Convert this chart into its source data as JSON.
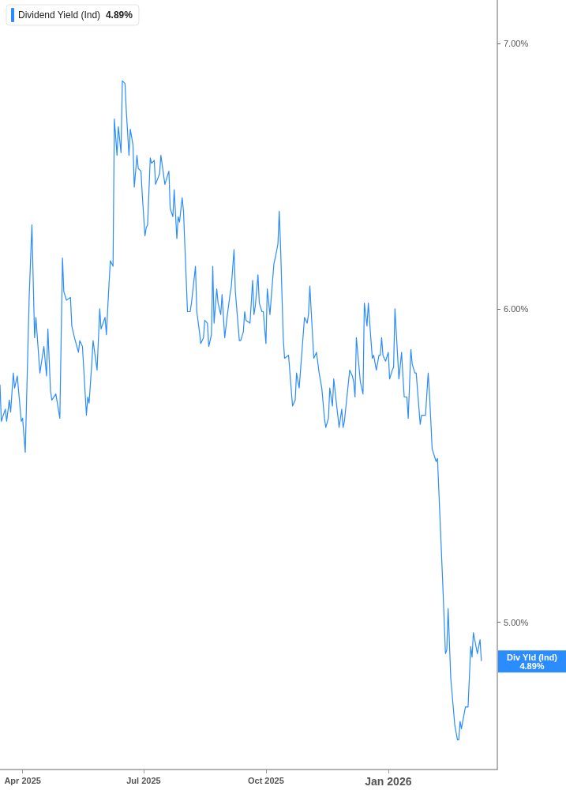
{
  "chart_data": {
    "type": "line",
    "log": "y",
    "legend": "top left",
    "marker": "none",
    "ylim": [
      4.59,
      7.18
    ],
    "yticks": [
      {
        "value": 5,
        "label": "5.00%"
      },
      {
        "value": 6,
        "label": "6.00%"
      },
      {
        "value": 7,
        "label": "7.00%"
      }
    ],
    "xlim": [
      "2025-03-15",
      "2026-03-24"
    ],
    "xticks": [
      {
        "value": "2025-04-01",
        "label": "Apr 2025"
      },
      {
        "value": "2025-07-01",
        "label": "Jul 2025"
      },
      {
        "value": "2025-10-01",
        "label": "Oct 2025"
      },
      {
        "value": "2026-01-01",
        "label": "Jan 2026"
      }
    ],
    "annotations": [
      "4.89%",
      "Div Yld (Ind)\n4.89%"
    ],
    "series": [
      {
        "name": "Dividend Yield (Ind)",
        "color": "#2a8cff",
        "x": [
          "2025-03-15",
          "2025-03-16",
          "2025-03-19",
          "2025-03-20",
          "2025-03-22",
          "2025-03-23",
          "2025-03-25",
          "2025-03-26",
          "2025-03-28",
          "2025-03-31",
          "2025-04-01",
          "2025-04-03",
          "2025-04-06",
          "2025-04-08",
          "2025-04-10",
          "2025-04-11",
          "2025-04-14",
          "2025-04-17",
          "2025-04-19",
          "2025-04-20",
          "2025-04-22",
          "2025-04-23",
          "2025-04-26",
          "2025-04-29",
          "2025-05-01",
          "2025-05-02",
          "2025-05-04",
          "2025-05-07",
          "2025-05-08",
          "2025-05-10",
          "2025-05-13",
          "2025-05-14",
          "2025-05-16",
          "2025-05-19",
          "2025-05-20",
          "2025-05-21",
          "2025-05-23",
          "2025-05-24",
          "2025-05-27",
          "2025-05-29",
          "2025-05-30",
          "2025-06-02",
          "2025-06-03",
          "2025-06-05",
          "2025-06-06",
          "2025-06-08",
          "2025-06-09",
          "2025-06-11",
          "2025-06-12",
          "2025-06-14",
          "2025-06-15",
          "2025-06-17",
          "2025-06-18",
          "2025-06-20",
          "2025-06-21",
          "2025-06-23",
          "2025-06-24",
          "2025-06-26",
          "2025-06-27",
          "2025-06-29",
          "2025-06-30",
          "2025-07-02",
          "2025-07-03",
          "2025-07-04",
          "2025-07-06",
          "2025-07-07",
          "2025-07-09",
          "2025-07-10",
          "2025-07-13",
          "2025-07-14",
          "2025-07-17",
          "2025-07-20",
          "2025-07-21",
          "2025-07-23",
          "2025-07-24",
          "2025-07-26",
          "2025-07-27",
          "2025-07-28",
          "2025-07-30",
          "2025-07-31",
          "2025-08-03",
          "2025-08-05",
          "2025-08-06",
          "2025-08-09",
          "2025-08-10",
          "2025-08-12",
          "2025-08-13",
          "2025-08-15",
          "2025-08-16",
          "2025-08-18",
          "2025-08-19",
          "2025-08-21",
          "2025-08-22",
          "2025-08-23",
          "2025-08-25",
          "2025-08-26",
          "2025-08-28",
          "2025-08-29",
          "2025-08-31",
          "2025-09-02",
          "2025-09-04",
          "2025-09-05",
          "2025-09-07",
          "2025-09-08",
          "2025-09-11",
          "2025-09-12",
          "2025-09-14",
          "2025-09-15",
          "2025-09-16",
          "2025-09-19",
          "2025-09-21",
          "2025-09-22",
          "2025-09-23",
          "2025-09-25",
          "2025-09-26",
          "2025-09-28",
          "2025-09-29",
          "2025-10-01",
          "2025-10-02",
          "2025-10-04",
          "2025-10-05",
          "2025-10-07",
          "2025-10-08",
          "2025-10-10",
          "2025-10-11",
          "2025-10-12",
          "2025-10-14",
          "2025-10-15",
          "2025-10-18",
          "2025-10-21",
          "2025-10-23",
          "2025-10-24",
          "2025-10-26",
          "2025-10-30",
          "2025-11-01",
          "2025-11-02",
          "2025-11-03",
          "2025-11-06",
          "2025-11-08",
          "2025-11-10",
          "2025-11-12",
          "2025-11-14",
          "2025-11-15",
          "2025-11-17",
          "2025-11-18",
          "2025-11-20",
          "2025-11-21",
          "2025-11-25",
          "2025-11-27",
          "2025-11-28",
          "2025-11-29",
          "2025-12-03",
          "2025-12-05",
          "2025-12-06",
          "2025-12-07",
          "2025-12-08",
          "2025-12-11",
          "2025-12-13",
          "2025-12-14",
          "2025-12-16",
          "2025-12-17",
          "2025-12-19",
          "2025-12-20",
          "2025-12-21",
          "2025-12-23",
          "2025-12-25",
          "2025-12-26",
          "2025-12-27",
          "2025-12-28",
          "2025-12-30",
          "2026-01-01",
          "2026-01-02",
          "2026-01-04",
          "2026-01-05",
          "2026-01-06",
          "2026-01-09",
          "2026-01-11",
          "2026-01-12",
          "2026-01-13",
          "2026-01-15",
          "2026-01-16",
          "2026-01-18",
          "2026-01-19",
          "2026-01-21",
          "2026-01-22",
          "2026-01-25",
          "2026-01-26",
          "2026-01-28",
          "2026-01-29",
          "2026-01-31",
          "2026-02-01",
          "2026-02-03",
          "2026-02-06",
          "2026-02-07",
          "2026-02-11",
          "2026-02-13",
          "2026-02-14",
          "2026-02-15",
          "2026-02-17",
          "2026-02-20",
          "2026-02-22",
          "2026-02-23",
          "2026-02-24",
          "2026-02-25",
          "2026-02-28",
          "2026-03-02",
          "2026-03-04",
          "2026-03-05",
          "2026-03-06",
          "2026-03-09",
          "2026-03-11",
          "2026-03-12"
        ],
        "values": [
          5.74,
          5.62,
          5.66,
          5.62,
          5.69,
          5.65,
          5.78,
          5.73,
          5.77,
          5.62,
          5.63,
          5.52,
          6.05,
          6.3,
          5.9,
          5.97,
          5.78,
          5.87,
          5.77,
          5.93,
          5.72,
          5.69,
          5.71,
          5.63,
          6.18,
          6.06,
          6.03,
          6.04,
          5.94,
          5.9,
          5.85,
          5.89,
          5.87,
          5.64,
          5.7,
          5.68,
          5.81,
          5.89,
          5.79,
          6.0,
          5.93,
          5.97,
          5.91,
          6.09,
          6.17,
          6.15,
          6.7,
          6.56,
          6.67,
          6.57,
          6.85,
          6.84,
          6.73,
          6.56,
          6.66,
          6.6,
          6.44,
          6.56,
          6.51,
          6.5,
          6.41,
          6.26,
          6.29,
          6.3,
          6.55,
          6.53,
          6.54,
          6.45,
          6.49,
          6.56,
          6.45,
          6.5,
          6.36,
          6.33,
          6.43,
          6.25,
          6.33,
          6.31,
          6.4,
          6.35,
          5.99,
          5.99,
          6.02,
          6.15,
          5.99,
          5.92,
          5.88,
          5.9,
          5.96,
          5.95,
          5.87,
          5.91,
          6.15,
          5.95,
          6.07,
          6.02,
          5.98,
          6.05,
          5.9,
          5.98,
          6.05,
          6.08,
          6.21,
          6.06,
          5.89,
          5.89,
          5.92,
          5.99,
          5.96,
          5.95,
          6.1,
          5.98,
          6.01,
          6.12,
          6.02,
          5.99,
          5.99,
          5.88,
          6.07,
          5.98,
          6.04,
          6.16,
          6.18,
          6.23,
          6.35,
          6.22,
          5.9,
          5.83,
          5.84,
          5.67,
          5.69,
          5.78,
          5.73,
          5.97,
          5.95,
          5.98,
          6.08,
          5.83,
          5.85,
          5.78,
          5.73,
          5.63,
          5.6,
          5.63,
          5.73,
          5.67,
          5.76,
          5.6,
          5.66,
          5.6,
          5.62,
          5.79,
          5.77,
          5.75,
          5.7,
          5.9,
          5.75,
          5.71,
          6.02,
          5.94,
          6.02,
          5.89,
          5.83,
          5.84,
          5.79,
          5.84,
          5.84,
          5.9,
          5.84,
          5.82,
          5.85,
          5.76,
          5.79,
          5.8,
          6.0,
          5.76,
          5.85,
          5.77,
          5.7,
          5.7,
          5.63,
          5.86,
          5.81,
          5.78,
          5.78,
          5.61,
          5.64,
          5.64,
          5.64,
          5.78,
          5.71,
          5.53,
          5.49,
          5.5,
          5.11,
          4.91,
          4.92,
          5.04,
          4.84,
          4.71,
          4.67,
          4.67,
          4.72,
          4.7,
          4.76,
          4.76,
          4.93,
          4.9,
          4.97,
          4.91,
          4.95,
          4.89
        ]
      }
    ]
  }
}
